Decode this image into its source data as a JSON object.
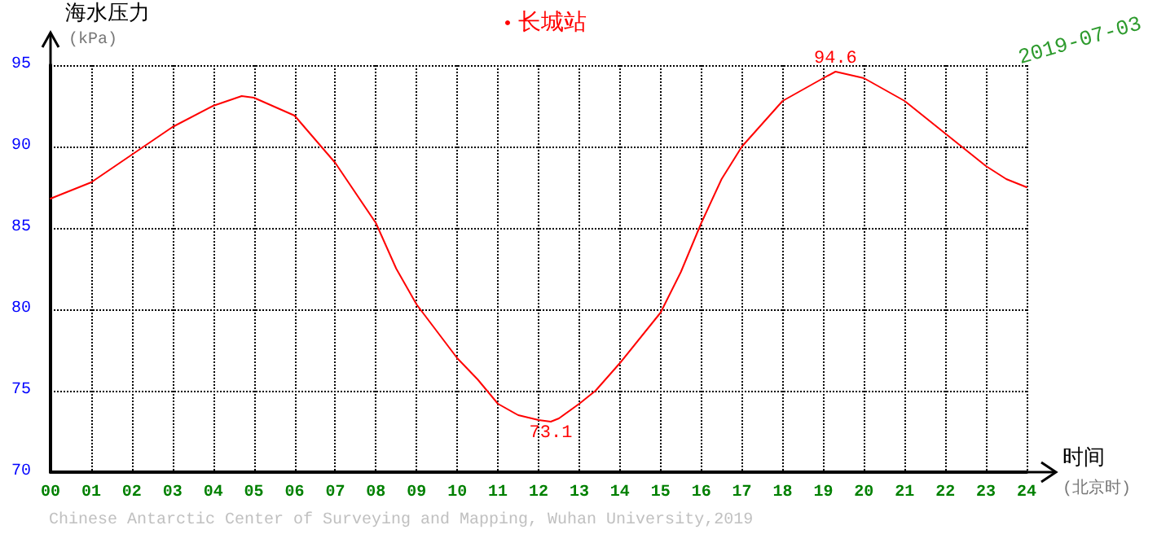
{
  "chart_data": {
    "type": "line",
    "subtitle": "2019-07-03",
    "xlabel": "时间\n(北京时)",
    "ylabel": "海水压力\n(kPa)",
    "x": [
      0,
      1,
      2,
      3,
      4,
      4.7,
      5,
      6,
      7,
      8,
      8.5,
      9,
      10,
      10.5,
      11,
      11.5,
      12,
      12.3,
      12.5,
      13,
      13.4,
      14,
      15,
      15.5,
      16,
      16.5,
      17,
      18,
      19,
      19.3,
      20,
      21,
      22,
      23,
      23.5,
      24
    ],
    "series": [
      {
        "name": "长城站",
        "color": "#ff0000",
        "values": [
          86.8,
          87.8,
          89.5,
          91.2,
          92.5,
          93.1,
          93.0,
          91.9,
          89.0,
          85.3,
          82.5,
          80.3,
          77.0,
          75.7,
          74.2,
          73.5,
          73.2,
          73.1,
          73.3,
          74.2,
          75.0,
          76.7,
          79.8,
          82.3,
          85.3,
          88.0,
          90.0,
          92.8,
          94.2,
          94.6,
          94.2,
          92.8,
          90.8,
          88.8,
          88.0,
          87.5
        ]
      }
    ],
    "annotations": [
      {
        "text": "94.6",
        "x": 19.3,
        "y": 94.6
      },
      {
        "text": "73.1",
        "x": 12.3,
        "y": 73.1
      },
      "Chinese Antarctic Center of Surveying and Mapping, Wuhan University,2019"
    ],
    "xlim": [
      0,
      24
    ],
    "xticks": [
      {
        "value": 0,
        "label": "00"
      },
      {
        "value": 1,
        "label": "01"
      },
      {
        "value": 2,
        "label": "02"
      },
      {
        "value": 3,
        "label": "03"
      },
      {
        "value": 4,
        "label": "04"
      },
      {
        "value": 5,
        "label": "05"
      },
      {
        "value": 6,
        "label": "06"
      },
      {
        "value": 7,
        "label": "07"
      },
      {
        "value": 8,
        "label": "08"
      },
      {
        "value": 9,
        "label": "09"
      },
      10,
      11,
      12,
      13,
      14,
      15,
      16,
      17,
      18,
      19,
      20,
      21,
      22,
      23,
      24
    ],
    "ylim": [
      70,
      95
    ],
    "yticks": [
      70,
      75,
      80,
      85,
      90,
      95
    ],
    "grid": true,
    "legend": "top",
    "line_style": "solid",
    "marker": "none"
  }
}
